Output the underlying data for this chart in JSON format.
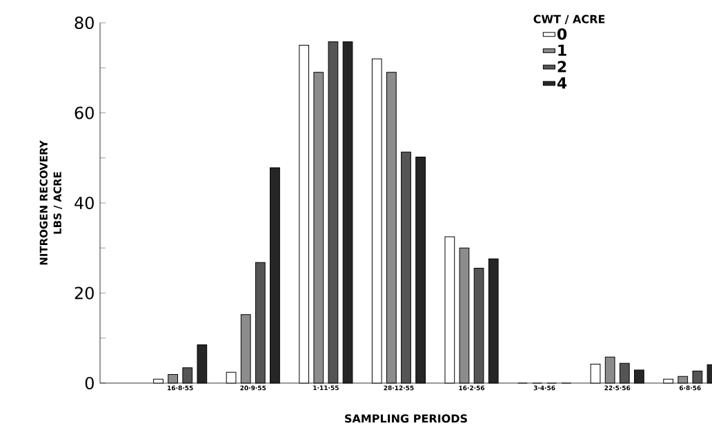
{
  "chart_data": {
    "type": "bar",
    "xlabel": "SAMPLING PERIODS",
    "ylabel": "NITROGEN RECOVERY LBS / ACRE",
    "legend_title": "CWT / ACRE",
    "categories": [
      "16·8·55",
      "20·9·55",
      "1·11·55",
      "28·12·55",
      "16·2·56",
      "3·4·56",
      "22·5·56",
      "6·8·56"
    ],
    "series": [
      {
        "name": "0",
        "color": "#ffffff",
        "values": [
          0.9,
          2.4,
          75,
          72,
          32.5,
          0,
          4.2,
          0.9
        ]
      },
      {
        "name": "1",
        "color": "#8c8c8c",
        "values": [
          1.9,
          15.2,
          69,
          69,
          30,
          0,
          5.8,
          1.5
        ]
      },
      {
        "name": "2",
        "color": "#555555",
        "values": [
          3.4,
          26.8,
          75.8,
          51.3,
          25.5,
          0,
          4.4,
          2.7
        ]
      },
      {
        "name": "4",
        "color": "#262626",
        "values": [
          8.5,
          47.8,
          75.8,
          50.2,
          27.6,
          0,
          2.9,
          4.1
        ]
      }
    ],
    "ylim": [
      0,
      80
    ],
    "yticks": [
      0,
      {
        "value": 10,
        "label": null
      },
      20,
      {
        "value": 30,
        "label": null
      },
      40,
      {
        "value": 50,
        "label": null
      },
      60,
      {
        "value": 70,
        "label": null
      },
      80
    ],
    "grid": false,
    "legend": "top right"
  }
}
